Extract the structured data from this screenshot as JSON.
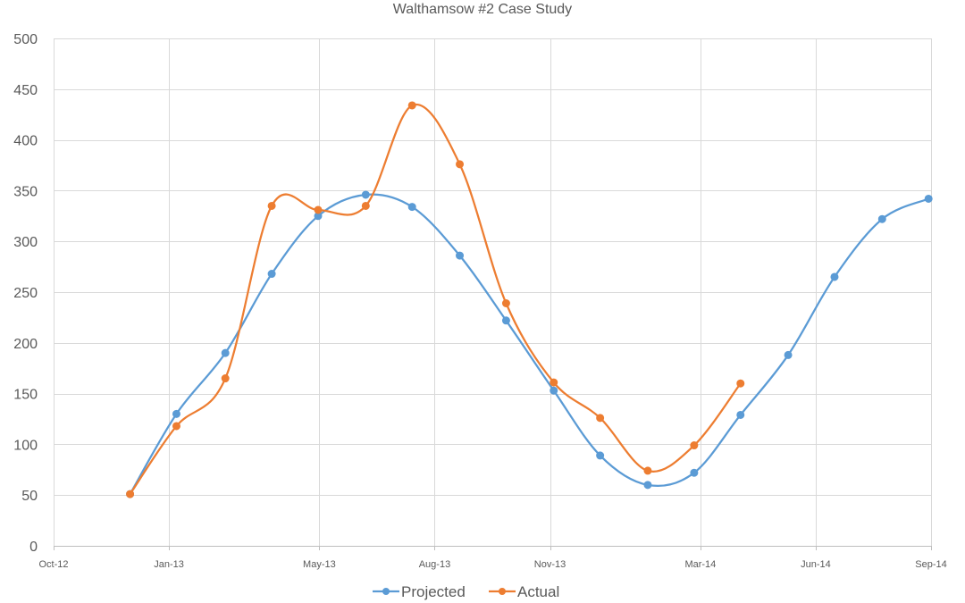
{
  "chart_data": {
    "type": "line",
    "title": "Walthamsow #2 Case Study",
    "xlabel": "",
    "ylabel": "",
    "ylim": [
      0,
      500
    ],
    "yticks": [
      0,
      50,
      100,
      150,
      200,
      250,
      300,
      350,
      400,
      450,
      500
    ],
    "xlim": [
      "2012-10-01",
      "2014-09-01"
    ],
    "xtick_labels": [
      "Oct-12",
      "Jan-13",
      "May-13",
      "Aug-13",
      "Nov-13",
      "Mar-14",
      "Jun-14",
      "Sep-14"
    ],
    "xtick_dates": [
      "2012-10-01",
      "2013-01-01",
      "2013-05-01",
      "2013-08-01",
      "2013-11-01",
      "2014-03-01",
      "2014-06-01",
      "2014-09-01"
    ],
    "grid": true,
    "legend_position": "bottom",
    "smooth": true,
    "series": [
      {
        "name": "Projected",
        "color": "#5B9BD5",
        "points": [
          {
            "x": "2012-12-01",
            "y": 51
          },
          {
            "x": "2013-01-07",
            "y": 130
          },
          {
            "x": "2013-02-15",
            "y": 190
          },
          {
            "x": "2013-03-24",
            "y": 268
          },
          {
            "x": "2013-04-30",
            "y": 325
          },
          {
            "x": "2013-06-07",
            "y": 346
          },
          {
            "x": "2013-07-14",
            "y": 334
          },
          {
            "x": "2013-08-21",
            "y": 286
          },
          {
            "x": "2013-09-27",
            "y": 222
          },
          {
            "x": "2013-11-04",
            "y": 153
          },
          {
            "x": "2013-12-11",
            "y": 89
          },
          {
            "x": "2014-01-18",
            "y": 60
          },
          {
            "x": "2014-02-24",
            "y": 72
          },
          {
            "x": "2014-04-02",
            "y": 129
          },
          {
            "x": "2014-05-10",
            "y": 188
          },
          {
            "x": "2014-06-16",
            "y": 265
          },
          {
            "x": "2014-07-24",
            "y": 322
          },
          {
            "x": "2014-08-30",
            "y": 342
          }
        ]
      },
      {
        "name": "Actual",
        "color": "#ED7D31",
        "points": [
          {
            "x": "2012-12-01",
            "y": 51
          },
          {
            "x": "2013-01-07",
            "y": 118
          },
          {
            "x": "2013-02-15",
            "y": 165
          },
          {
            "x": "2013-03-24",
            "y": 335
          },
          {
            "x": "2013-04-30",
            "y": 331
          },
          {
            "x": "2013-06-07",
            "y": 335
          },
          {
            "x": "2013-07-14",
            "y": 434
          },
          {
            "x": "2013-08-21",
            "y": 376
          },
          {
            "x": "2013-09-27",
            "y": 239
          },
          {
            "x": "2013-11-04",
            "y": 161
          },
          {
            "x": "2013-12-11",
            "y": 126
          },
          {
            "x": "2014-01-18",
            "y": 74
          },
          {
            "x": "2014-02-24",
            "y": 99
          },
          {
            "x": "2014-04-02",
            "y": 160
          }
        ]
      }
    ]
  }
}
